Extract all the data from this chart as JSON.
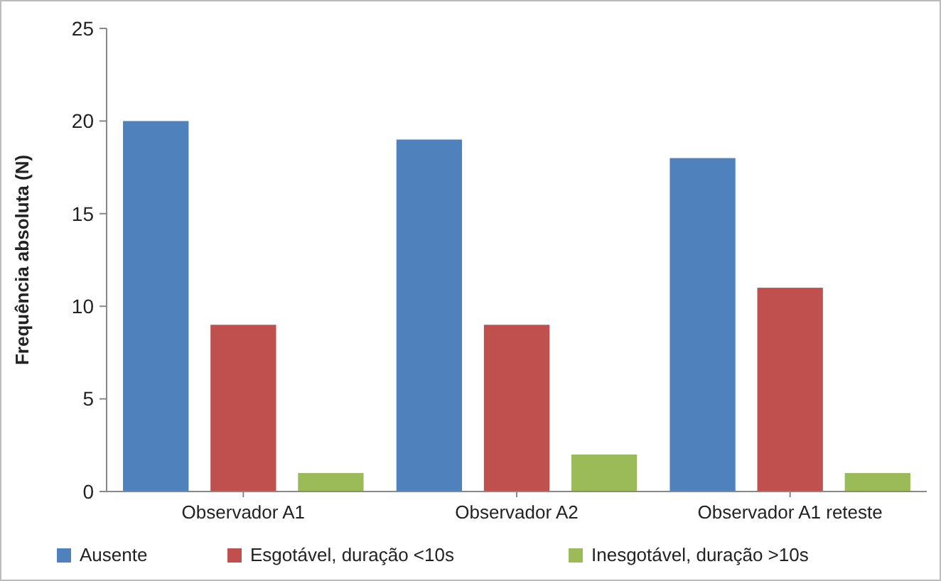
{
  "chart_data": {
    "type": "bar",
    "ylabel": "Frequência absoluta (N)",
    "categories": [
      "Observador A1",
      "Observador A2",
      "Observador A1 reteste"
    ],
    "series": [
      {
        "name": "Ausente",
        "color": "#4f81bd",
        "values": [
          20,
          19,
          18
        ]
      },
      {
        "name": "Esgotável, duração <10s",
        "color": "#c0504d",
        "values": [
          9,
          9,
          11
        ]
      },
      {
        "name": "Inesgotável, duração >10s",
        "color": "#9bbb59",
        "values": [
          1,
          2,
          1
        ]
      }
    ],
    "ylim": [
      0,
      25
    ],
    "yticks": [
      0,
      5,
      10,
      15,
      20,
      25
    ],
    "grid": false,
    "legend": "bottom"
  }
}
